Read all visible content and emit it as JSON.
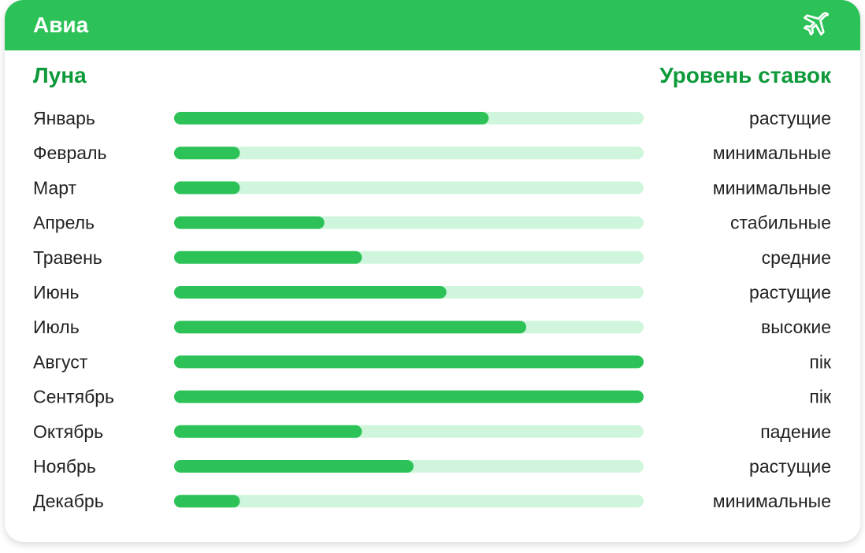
{
  "header": {
    "title": "Авиа",
    "icon": "airplane-icon"
  },
  "columns": {
    "left": "Луна",
    "right": "Уровень ставок"
  },
  "colors": {
    "header": "#2dc258",
    "bar": "#2dc258",
    "track": "#cff6dc",
    "heading": "#0e9a3a"
  },
  "chart_data": {
    "type": "bar",
    "orientation": "horizontal",
    "categories": [
      "Январь",
      "Февраль",
      "Март",
      "Апрель",
      "Травень",
      "Июнь",
      "Июль",
      "Август",
      "Сентябрь",
      "Октябрь",
      "Ноябрь",
      "Декабрь"
    ],
    "values": [
      67,
      14,
      14,
      32,
      40,
      58,
      75,
      100,
      100,
      40,
      51,
      14
    ],
    "labels": [
      "растущие",
      "минимальные",
      "минимальные",
      "стабильные",
      "средние",
      "растущие",
      "высокие",
      "пік",
      "пік",
      "падение",
      "растущие",
      "минимальные"
    ],
    "xlim": [
      0,
      100
    ]
  }
}
